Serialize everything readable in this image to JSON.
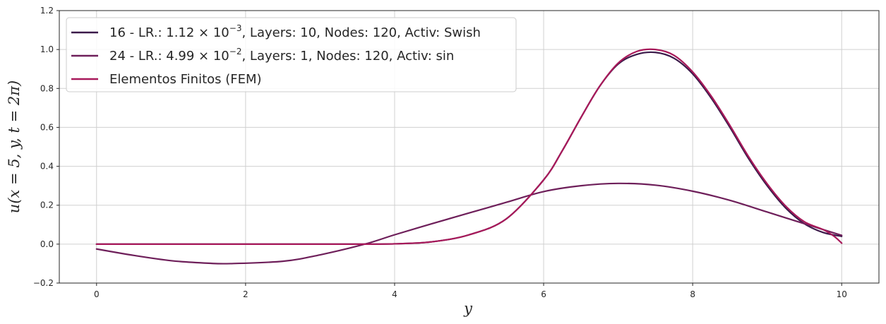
{
  "chart_data": {
    "type": "line",
    "xlabel": "y",
    "ylabel": "u(x = 5, y, t = 2π)",
    "xlim": [
      -0.5,
      10.5
    ],
    "ylim": [
      -0.2,
      1.2
    ],
    "xticks": [
      0,
      2,
      4,
      6,
      8,
      10
    ],
    "yticks": [
      -0.2,
      0.0,
      0.2,
      0.4,
      0.6,
      0.8,
      1.0,
      1.2
    ],
    "xtick_labels": [
      "0",
      "2",
      "4",
      "6",
      "8",
      "10"
    ],
    "ytick_labels": [
      "−0.2",
      "0.0",
      "0.2",
      "0.4",
      "0.6",
      "0.8",
      "1.0",
      "1.2"
    ],
    "grid": true,
    "legend_position": "top-left",
    "series": [
      {
        "name": "16 - LR.: 1.12 × 10⁻³, Layers: 10, Nodes: 120, Activ: Swish",
        "legend": {
          "prefix": "16 - LR.: 1.12 × 10",
          "exp": "−3",
          "suffix": ", Layers: 10, Nodes: 120, Activ: Swish"
        },
        "color": "#3b1a4a",
        "x": [
          0,
          1,
          2,
          3,
          3.5,
          4,
          4.5,
          5,
          5.5,
          6,
          6.25,
          6.5,
          6.75,
          7,
          7.25,
          7.5,
          7.75,
          8,
          8.25,
          8.5,
          8.75,
          9,
          9.25,
          9.5,
          9.75,
          10
        ],
        "y": [
          0.0,
          0.0,
          0.0,
          0.0,
          0.0,
          0.0015,
          0.012,
          0.048,
          0.13,
          0.33,
          0.48,
          0.65,
          0.81,
          0.925,
          0.975,
          0.985,
          0.955,
          0.875,
          0.75,
          0.6,
          0.44,
          0.3,
          0.185,
          0.105,
          0.06,
          0.04
        ]
      },
      {
        "name": "24 - LR.: 4.99 × 10⁻², Layers: 1, Nodes: 120, Activ: sin",
        "legend": {
          "prefix": "24 - LR.: 4.99 × 10",
          "exp": "−2",
          "suffix": ", Layers: 1, Nodes: 120, Activ: sin"
        },
        "color": "#6e1f5a",
        "x": [
          0,
          0.5,
          1,
          1.5,
          1.8,
          2.5,
          3,
          3.6,
          4,
          4.5,
          5,
          5.5,
          6,
          6.5,
          7,
          7.5,
          8,
          8.5,
          9,
          9.5,
          10
        ],
        "y": [
          -0.025,
          -0.058,
          -0.085,
          -0.098,
          -0.1,
          -0.088,
          -0.055,
          0.0,
          0.048,
          0.105,
          0.16,
          0.215,
          0.27,
          0.3,
          0.312,
          0.303,
          0.272,
          0.225,
          0.165,
          0.105,
          0.045
        ]
      },
      {
        "name": "Elementos Finitos (FEM)",
        "legend": {
          "prefix": "Elementos Finitos (FEM)",
          "exp": "",
          "suffix": ""
        },
        "color": "#a8195a",
        "x": [
          0,
          1,
          2,
          3,
          3.5,
          4,
          4.5,
          5,
          5.5,
          6,
          6.25,
          6.5,
          6.75,
          7,
          7.25,
          7.5,
          7.75,
          8,
          8.25,
          8.5,
          8.75,
          9,
          9.25,
          9.5,
          9.75,
          9.9,
          10
        ],
        "y": [
          0.0,
          0.0,
          0.0,
          0.0,
          0.0,
          0.0015,
          0.012,
          0.048,
          0.13,
          0.33,
          0.48,
          0.65,
          0.81,
          0.93,
          0.99,
          1.0,
          0.97,
          0.885,
          0.76,
          0.61,
          0.45,
          0.31,
          0.195,
          0.115,
          0.075,
          0.04,
          0.005
        ]
      }
    ]
  }
}
